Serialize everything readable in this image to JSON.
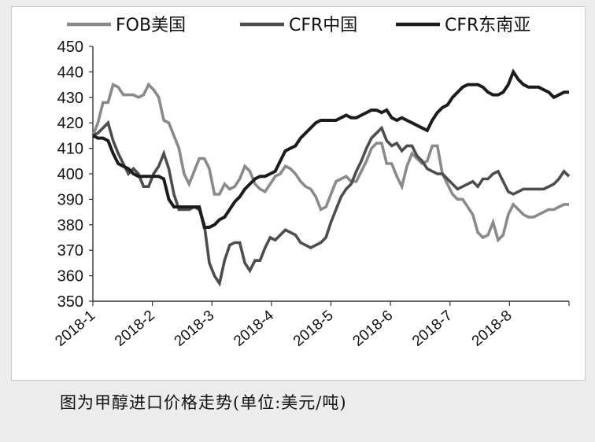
{
  "caption": "图为甲醇进口价格走势(单位:美元/吨)",
  "chart_data": {
    "type": "line",
    "ylim": [
      350,
      450
    ],
    "yticks": [
      350,
      360,
      370,
      380,
      390,
      400,
      410,
      420,
      430,
      440,
      450
    ],
    "xticks": [
      "2018-1",
      "2018-2",
      "2018-3",
      "2018-4",
      "2018-5",
      "2018-6",
      "2018-7",
      "2018-8"
    ],
    "legend_position": "top",
    "grid": false,
    "series": [
      {
        "name": "FOB美国",
        "color": "#8a8a8a",
        "values": [
          415,
          420,
          428,
          428,
          435,
          434,
          431,
          431,
          431,
          430,
          431,
          435,
          433,
          430,
          421,
          420,
          415,
          410,
          400,
          396,
          401,
          406,
          406,
          402,
          392,
          392,
          396,
          394,
          395,
          398,
          403,
          401,
          396,
          394,
          393,
          396,
          399,
          400,
          403,
          402,
          400,
          397,
          395,
          394,
          391,
          386,
          387,
          392,
          397,
          398,
          399,
          397,
          397,
          401,
          405,
          410,
          412,
          412,
          404,
          404,
          399,
          395,
          403,
          408,
          406,
          404,
          405,
          411,
          411,
          400,
          396,
          392,
          390,
          390,
          387,
          384,
          377,
          375,
          376,
          381,
          374,
          376,
          384,
          388,
          386,
          384,
          383,
          383,
          384,
          385,
          386,
          386,
          387,
          388,
          388
        ]
      },
      {
        "name": "CFR中国",
        "color": "#4d4d4d",
        "values": [
          415,
          416,
          418,
          420,
          413,
          408,
          404,
          400,
          402,
          400,
          395,
          395,
          400,
          403,
          408,
          402,
          392,
          386,
          386,
          386,
          387,
          386,
          380,
          365,
          360,
          357,
          366,
          372,
          373,
          373,
          365,
          362,
          366,
          366,
          371,
          375,
          374,
          376,
          378,
          377,
          376,
          373,
          372,
          371,
          372,
          373,
          375,
          381,
          386,
          391,
          394,
          396,
          401,
          405,
          410,
          414,
          416,
          418,
          413,
          411,
          412,
          409,
          411,
          411,
          407,
          405,
          402,
          401,
          400,
          400,
          398,
          396,
          394,
          395,
          396,
          397,
          395,
          398,
          398,
          400,
          401,
          397,
          393,
          392,
          393,
          394,
          394,
          394,
          394,
          394,
          395,
          396,
          398,
          401,
          399
        ]
      },
      {
        "name": "CFR东南亚",
        "color": "#1c1c1c",
        "values": [
          415,
          414,
          414,
          413,
          408,
          404,
          403,
          402,
          400,
          399,
          399,
          399,
          399,
          399,
          398,
          390,
          387,
          387,
          387,
          387,
          387,
          387,
          379,
          379,
          380,
          382,
          383,
          386,
          389,
          391,
          394,
          396,
          398,
          399,
          399,
          400,
          401,
          405,
          409,
          410,
          411,
          414,
          416,
          418,
          420,
          421,
          421,
          421,
          421,
          422,
          423,
          422,
          422,
          423,
          424,
          425,
          425,
          424,
          425,
          422,
          421,
          422,
          421,
          420,
          419,
          418,
          417,
          421,
          424,
          426,
          427,
          430,
          432,
          434,
          435,
          435,
          435,
          434,
          432,
          431,
          431,
          432,
          435,
          440,
          437,
          435,
          434,
          434,
          434,
          433,
          432,
          430,
          431,
          432,
          432
        ]
      }
    ]
  }
}
